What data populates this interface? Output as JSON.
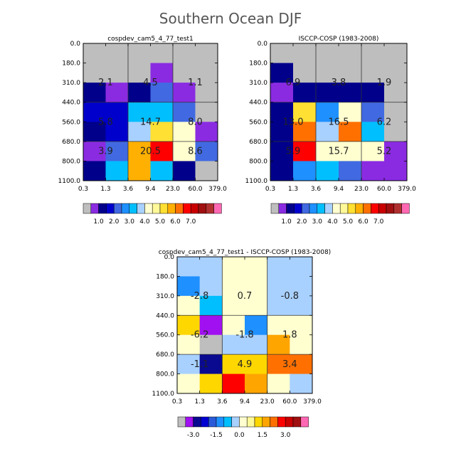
{
  "page": {
    "title": "Southern Ocean DJF"
  },
  "palettes": {
    "abs": [
      "#bebebe",
      "#8a2be2",
      "#00008b",
      "#0000cd",
      "#4169e1",
      "#1e90ff",
      "#00bfff",
      "#a8d1ff",
      "#ffffd0",
      "#fff99a",
      "#ffe033",
      "#ffb000",
      "#ff7000",
      "#ff0000",
      "#c80000",
      "#a01010",
      "#b03030",
      "#ff69b4"
    ],
    "diff": [
      "#bebebe",
      "#a010f0",
      "#0a0a90",
      "#0000d0",
      "#2a5ad8",
      "#1e90ff",
      "#00bfff",
      "#a8d1ff",
      "#ffffd0",
      "#fff99a",
      "#ffd700",
      "#ffa500",
      "#ff7000",
      "#ff0000",
      "#c80000",
      "#a01010",
      "#ff69b4"
    ]
  },
  "chart_data": [
    {
      "type": "heatmap",
      "title": "cospdev_cam5_4_77_test1",
      "x_tick_labels": [
        "0.3",
        "1.3",
        "3.6",
        "9.4",
        "23.0",
        "60.0",
        "379.0"
      ],
      "y_tick_labels": [
        "0.0",
        "180.0",
        "310.0",
        "440.0",
        "560.0",
        "680.0",
        "800.0",
        "1100.0"
      ],
      "cell_color_index": [
        [
          0,
          0,
          0,
          0,
          0,
          0
        ],
        [
          0,
          0,
          0,
          1,
          0,
          0
        ],
        [
          2,
          1,
          2,
          4,
          1,
          0
        ],
        [
          3,
          3,
          6,
          6,
          4,
          0
        ],
        [
          2,
          3,
          7,
          10,
          8,
          1
        ],
        [
          1,
          4,
          11,
          13,
          8,
          4
        ],
        [
          2,
          6,
          11,
          6,
          2,
          0
        ]
      ],
      "boxes": [
        {
          "row": 0,
          "col": 0,
          "value": "2.1"
        },
        {
          "row": 0,
          "col": 1,
          "value": "4.5"
        },
        {
          "row": 0,
          "col": 2,
          "value": "1.1"
        },
        {
          "row": 1,
          "col": 0,
          "value": "5.8"
        },
        {
          "row": 1,
          "col": 1,
          "value": "14.7"
        },
        {
          "row": 1,
          "col": 2,
          "value": "8.0"
        },
        {
          "row": 2,
          "col": 0,
          "value": "3.9"
        },
        {
          "row": 2,
          "col": 1,
          "value": "20.5"
        },
        {
          "row": 2,
          "col": 2,
          "value": "8.6"
        }
      ],
      "legend_labels": [
        "1.0",
        "2.0",
        "3.0",
        "4.0",
        "5.0",
        "6.0",
        "7.0"
      ]
    },
    {
      "type": "heatmap",
      "title": "ISCCP-COSP (1983-2008)",
      "x_tick_labels": [
        "0.3",
        "1.3",
        "3.6",
        "9.4",
        "23.0",
        "60.0",
        "379.0"
      ],
      "y_tick_labels": [
        "0.0",
        "180.0",
        "310.0",
        "440.0",
        "560.0",
        "680.0",
        "800.0",
        "1100.0"
      ],
      "cell_color_index": [
        [
          0,
          0,
          0,
          0,
          0,
          0
        ],
        [
          2,
          0,
          0,
          0,
          0,
          0
        ],
        [
          1,
          2,
          2,
          2,
          2,
          0
        ],
        [
          2,
          10,
          5,
          8,
          4,
          0
        ],
        [
          2,
          12,
          7,
          12,
          6,
          0
        ],
        [
          2,
          13,
          8,
          8,
          8,
          1
        ],
        [
          2,
          5,
          6,
          4,
          1,
          1
        ]
      ],
      "boxes": [
        {
          "row": 0,
          "col": 0,
          "value": "6.9"
        },
        {
          "row": 0,
          "col": 1,
          "value": "3.8"
        },
        {
          "row": 0,
          "col": 2,
          "value": "1.9"
        },
        {
          "row": 1,
          "col": 0,
          "value": "13.0"
        },
        {
          "row": 1,
          "col": 1,
          "value": "16.5"
        },
        {
          "row": 1,
          "col": 2,
          "value": "6.2"
        },
        {
          "row": 2,
          "col": 0,
          "value": "5.9"
        },
        {
          "row": 2,
          "col": 1,
          "value": "15.7"
        },
        {
          "row": 2,
          "col": 2,
          "value": "5.2"
        }
      ],
      "legend_labels": [
        "1.0",
        "2.0",
        "3.0",
        "4.0",
        "5.0",
        "6.0",
        "7.0"
      ]
    },
    {
      "type": "heatmap",
      "title": "cospdev_cam5_4_77_test1 - ISCCP-COSP (1983-2008)",
      "x_tick_labels": [
        "0.3",
        "1.3",
        "3.6",
        "9.4",
        "23.0",
        "60.0",
        "379.0"
      ],
      "y_tick_labels": [
        "0.0",
        "180.0",
        "310.0",
        "440.0",
        "560.0",
        "680.0",
        "800.0",
        "1100.0"
      ],
      "cell_color_index": [
        [
          7,
          7,
          8,
          8,
          7,
          7
        ],
        [
          5,
          7,
          8,
          8,
          7,
          7
        ],
        [
          8,
          6,
          8,
          8,
          7,
          7
        ],
        [
          10,
          1,
          8,
          5,
          8,
          8
        ],
        [
          8,
          0,
          7,
          7,
          11,
          8
        ],
        [
          7,
          2,
          10,
          10,
          12,
          12
        ],
        [
          8,
          10,
          13,
          11,
          8,
          7
        ]
      ],
      "boxes": [
        {
          "row": 0,
          "col": 0,
          "value": "-2.8"
        },
        {
          "row": 0,
          "col": 1,
          "value": "0.7"
        },
        {
          "row": 0,
          "col": 2,
          "value": "-0.8"
        },
        {
          "row": 1,
          "col": 0,
          "value": "-6.2"
        },
        {
          "row": 1,
          "col": 1,
          "value": "-1.8"
        },
        {
          "row": 1,
          "col": 2,
          "value": "1.8"
        },
        {
          "row": 2,
          "col": 0,
          "value": "-1.1"
        },
        {
          "row": 2,
          "col": 1,
          "value": "4.9"
        },
        {
          "row": 2,
          "col": 2,
          "value": "3.4"
        }
      ],
      "legend_labels": [
        "-3.0",
        "-1.5",
        "0.0",
        "1.5",
        "3.0"
      ]
    }
  ]
}
